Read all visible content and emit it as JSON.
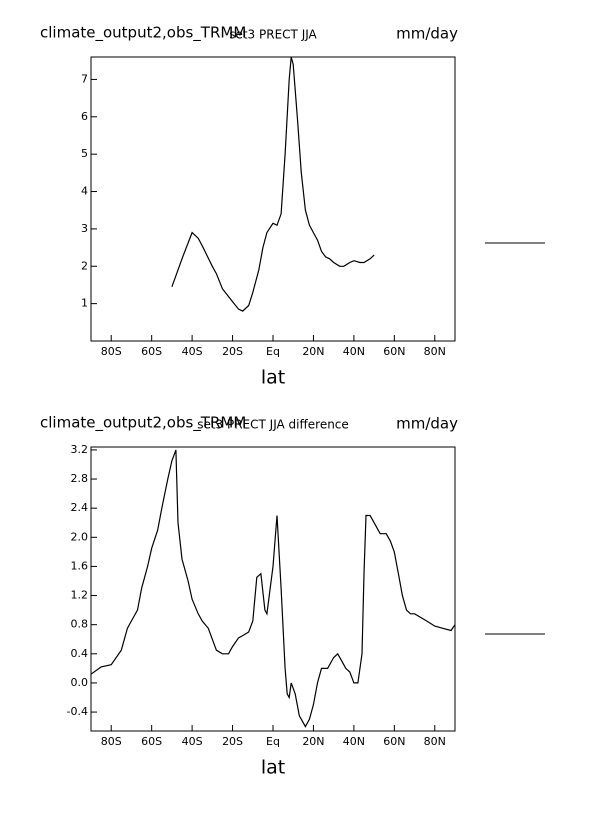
{
  "chart_data": [
    {
      "type": "line",
      "title": "climate_output2,obs_TRMM",
      "subtitle": "set3 PRECT JJA",
      "units": "mm/day",
      "xlabel": "lat",
      "color": "#000000",
      "x": [
        -50,
        -45,
        -40,
        -37,
        -35,
        -30,
        -28,
        -25,
        -20,
        -17,
        -15,
        -12,
        -10,
        -7,
        -5,
        -3,
        0,
        2,
        4,
        6,
        8,
        9,
        10,
        12,
        14,
        16,
        18,
        20,
        22,
        24,
        26,
        28,
        30,
        33,
        35,
        38,
        40,
        43,
        45,
        48,
        50
      ],
      "values": [
        1.45,
        2.2,
        2.9,
        2.75,
        2.55,
        2.0,
        1.8,
        1.4,
        1.05,
        0.85,
        0.8,
        0.95,
        1.3,
        1.9,
        2.5,
        2.9,
        3.15,
        3.1,
        3.4,
        5.0,
        7.0,
        7.6,
        7.4,
        6.0,
        4.5,
        3.5,
        3.1,
        2.9,
        2.7,
        2.4,
        2.25,
        2.2,
        2.1,
        2.0,
        2.0,
        2.1,
        2.15,
        2.1,
        2.1,
        2.2,
        2.3
      ],
      "xlim": [
        -90,
        90
      ],
      "xticks": [
        {
          "value": -80,
          "label": "80S"
        },
        {
          "value": -60,
          "label": "60S"
        },
        {
          "value": -40,
          "label": "40S"
        },
        {
          "value": -20,
          "label": "20S"
        },
        {
          "value": 0,
          "label": "Eq"
        },
        {
          "value": 20,
          "label": "20N"
        },
        {
          "value": 40,
          "label": "40N"
        },
        {
          "value": 60,
          "label": "60N"
        },
        {
          "value": 80,
          "label": "80N"
        }
      ],
      "ylim": [
        0,
        7.6
      ],
      "yticks": [
        1,
        2,
        3,
        4,
        5,
        6,
        7
      ]
    },
    {
      "type": "line",
      "title": "climate_output2,obs_TRMM",
      "subtitle": "set3 PRECT JJA difference",
      "units": "mm/day",
      "xlabel": "lat",
      "color": "#000000",
      "x": [
        -90,
        -85,
        -80,
        -75,
        -72,
        -70,
        -67,
        -65,
        -62,
        -60,
        -57,
        -55,
        -52,
        -50,
        -48,
        -47,
        -45,
        -42,
        -40,
        -37,
        -35,
        -32,
        -30,
        -28,
        -25,
        -22,
        -20,
        -17,
        -15,
        -12,
        -10,
        -8,
        -6,
        -4,
        -3,
        0,
        2,
        4,
        6,
        7,
        8,
        9,
        11,
        13,
        16,
        18,
        20,
        22,
        24,
        27,
        30,
        32,
        34,
        36,
        38,
        40,
        42,
        44,
        45,
        46,
        48,
        50,
        53,
        56,
        58,
        60,
        62,
        64,
        66,
        68,
        70,
        73,
        76,
        80,
        84,
        88,
        90
      ],
      "values": [
        0.12,
        0.22,
        0.25,
        0.45,
        0.75,
        0.85,
        1.0,
        1.3,
        1.6,
        1.85,
        2.1,
        2.4,
        2.8,
        3.05,
        3.2,
        2.2,
        1.7,
        1.4,
        1.15,
        0.95,
        0.85,
        0.75,
        0.6,
        0.45,
        0.4,
        0.4,
        0.5,
        0.62,
        0.65,
        0.7,
        0.85,
        1.45,
        1.5,
        1.0,
        0.95,
        1.6,
        2.3,
        1.3,
        0.2,
        -0.15,
        -0.2,
        0.0,
        -0.15,
        -0.45,
        -0.6,
        -0.5,
        -0.3,
        0.0,
        0.2,
        0.2,
        0.35,
        0.4,
        0.3,
        0.2,
        0.15,
        0.0,
        0.0,
        0.4,
        1.5,
        2.3,
        2.3,
        2.2,
        2.05,
        2.05,
        1.95,
        1.8,
        1.5,
        1.2,
        1.0,
        0.95,
        0.95,
        0.9,
        0.85,
        0.78,
        0.75,
        0.72,
        0.8
      ],
      "xlim": [
        -90,
        90
      ],
      "xticks": [
        {
          "value": -80,
          "label": "80S"
        },
        {
          "value": -60,
          "label": "60S"
        },
        {
          "value": -40,
          "label": "40S"
        },
        {
          "value": -20,
          "label": "20S"
        },
        {
          "value": 0,
          "label": "Eq"
        },
        {
          "value": 20,
          "label": "20N"
        },
        {
          "value": 40,
          "label": "40N"
        },
        {
          "value": 60,
          "label": "60N"
        },
        {
          "value": 80,
          "label": "80N"
        }
      ],
      "ylim": [
        -0.66,
        3.24
      ],
      "yticks": [
        -0.4,
        {
          "value": 0,
          "label": "0.0"
        },
        0.4,
        0.8,
        1.2,
        1.6,
        {
          "value": 2,
          "label": "2.0"
        },
        2.4,
        2.8,
        3.2
      ]
    }
  ]
}
